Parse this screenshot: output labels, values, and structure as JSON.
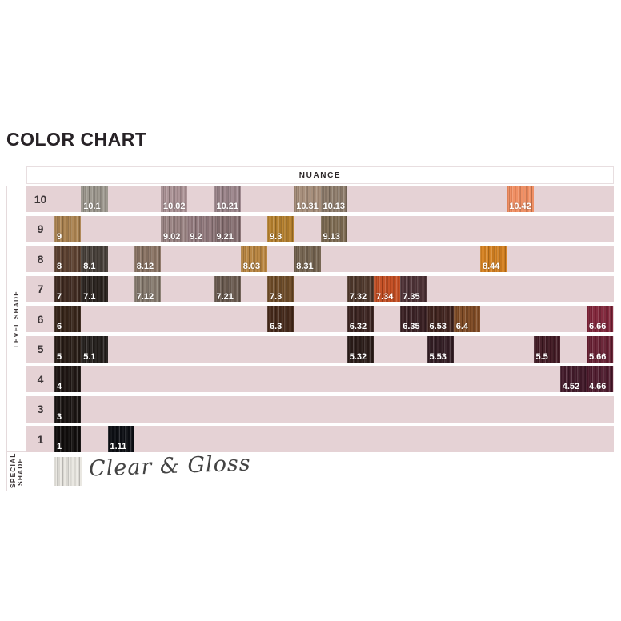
{
  "page_title": "COLOR CHART",
  "header": {
    "nuance_label": "NUANCE"
  },
  "sidebar": {
    "level_shade_label": "LEVEL SHADE",
    "special_shade_label": "SPECIAL SHADE"
  },
  "palette": {
    "band_pink": "#e5d2d5",
    "page_background": "#ffffff",
    "border_light": "#e8dee0",
    "text_dark": "#3b3436",
    "swatch_label_white": "#ffffff"
  },
  "levels": [
    {
      "level": "10",
      "swatches": [
        {
          "label": "10.1",
          "col": 1,
          "color": "#9a958b"
        },
        {
          "label": "10.02",
          "col": 4,
          "color": "#a98f92"
        },
        {
          "label": "10.21",
          "col": 6,
          "color": "#9c858b"
        },
        {
          "label": "10.31",
          "col": 9,
          "color": "#a38a76"
        },
        {
          "label": "10.13",
          "col": 10,
          "color": "#8e7c6b"
        },
        {
          "label": "10.42",
          "col": 17,
          "color": "#ef8a5d"
        }
      ]
    },
    {
      "level": "9",
      "swatches": [
        {
          "label": "9",
          "col": 0,
          "color": "#ac8350"
        },
        {
          "label": "9.02",
          "col": 4,
          "color": "#97807f"
        },
        {
          "label": "9.2",
          "col": 5,
          "color": "#937a7e"
        },
        {
          "label": "9.21",
          "col": 6,
          "color": "#877072"
        },
        {
          "label": "9.3",
          "col": 8,
          "color": "#b6802c"
        },
        {
          "label": "9.13",
          "col": 10,
          "color": "#7d6a51"
        }
      ]
    },
    {
      "level": "8",
      "swatches": [
        {
          "label": "8",
          "col": 0,
          "color": "#5d4130"
        },
        {
          "label": "8.1",
          "col": 1,
          "color": "#433b35"
        },
        {
          "label": "8.12",
          "col": 3,
          "color": "#8b7464"
        },
        {
          "label": "8.03",
          "col": 7,
          "color": "#b6823c"
        },
        {
          "label": "8.31",
          "col": 9,
          "color": "#705f4b"
        },
        {
          "label": "8.44",
          "col": 16,
          "color": "#d6811f"
        }
      ]
    },
    {
      "level": "7",
      "swatches": [
        {
          "label": "7",
          "col": 0,
          "color": "#3f2a20"
        },
        {
          "label": "7.1",
          "col": 1,
          "color": "#261f1a"
        },
        {
          "label": "7.12",
          "col": 3,
          "color": "#877b6f"
        },
        {
          "label": "7.21",
          "col": 6,
          "color": "#6b5b50"
        },
        {
          "label": "7.3",
          "col": 8,
          "color": "#6e4b27"
        },
        {
          "label": "7.32",
          "col": 11,
          "color": "#4f382b"
        },
        {
          "label": "7.34",
          "col": 12,
          "color": "#c24a1e"
        },
        {
          "label": "7.35",
          "col": 13,
          "color": "#4e3136"
        }
      ]
    },
    {
      "level": "6",
      "swatches": [
        {
          "label": "6",
          "col": 0,
          "color": "#372519"
        },
        {
          "label": "6.3",
          "col": 8,
          "color": "#46291a"
        },
        {
          "label": "6.32",
          "col": 11,
          "color": "#3b2320"
        },
        {
          "label": "6.35",
          "col": 13,
          "color": "#3a2023"
        },
        {
          "label": "6.53",
          "col": 14,
          "color": "#41231e"
        },
        {
          "label": "6.4",
          "col": 15,
          "color": "#7c4720"
        },
        {
          "label": "6.66",
          "col": 20,
          "color": "#7d2136"
        }
      ]
    },
    {
      "level": "5",
      "swatches": [
        {
          "label": "5",
          "col": 0,
          "color": "#281c15"
        },
        {
          "label": "5.1",
          "col": 1,
          "color": "#201b18"
        },
        {
          "label": "5.32",
          "col": 11,
          "color": "#2b1c19"
        },
        {
          "label": "5.53",
          "col": 14,
          "color": "#331d24"
        },
        {
          "label": "5.5",
          "col": 18,
          "color": "#3e1620"
        },
        {
          "label": "5.66",
          "col": 20,
          "color": "#641c2f"
        }
      ]
    },
    {
      "level": "4",
      "swatches": [
        {
          "label": "4",
          "col": 0,
          "color": "#1f1613"
        },
        {
          "label": "4.52",
          "col": 19,
          "color": "#431a2a"
        },
        {
          "label": "4.66",
          "col": 20,
          "color": "#4b172a"
        }
      ]
    },
    {
      "level": "3",
      "swatches": [
        {
          "label": "3",
          "col": 0,
          "color": "#191311"
        }
      ]
    },
    {
      "level": "1",
      "swatches": [
        {
          "label": "1",
          "col": 0,
          "color": "#100d0c"
        },
        {
          "label": "1.11",
          "col": 2,
          "color": "#0c0e13"
        }
      ]
    }
  ],
  "special": {
    "script_label": "Clear & Gloss",
    "swatch_color": "#e9e7e1"
  }
}
